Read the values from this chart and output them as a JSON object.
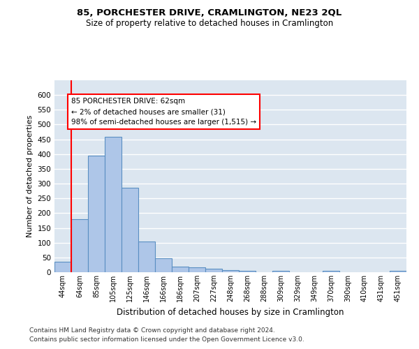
{
  "title": "85, PORCHESTER DRIVE, CRAMLINGTON, NE23 2QL",
  "subtitle": "Size of property relative to detached houses in Cramlington",
  "xlabel": "Distribution of detached houses by size in Cramlington",
  "ylabel": "Number of detached properties",
  "categories": [
    "44sqm",
    "64sqm",
    "85sqm",
    "105sqm",
    "125sqm",
    "146sqm",
    "166sqm",
    "186sqm",
    "207sqm",
    "227sqm",
    "248sqm",
    "268sqm",
    "288sqm",
    "309sqm",
    "329sqm",
    "349sqm",
    "370sqm",
    "390sqm",
    "410sqm",
    "431sqm",
    "451sqm"
  ],
  "values": [
    35,
    180,
    395,
    458,
    287,
    103,
    48,
    20,
    16,
    12,
    8,
    4,
    0,
    4,
    0,
    0,
    4,
    0,
    0,
    0,
    4
  ],
  "bar_color": "#aec6e8",
  "bar_edgecolor": "#5a8fc2",
  "background_color": "#ffffff",
  "plot_bg_color": "#dce6f0",
  "grid_color": "#ffffff",
  "ylim": [
    0,
    650
  ],
  "yticks": [
    0,
    50,
    100,
    150,
    200,
    250,
    300,
    350,
    400,
    450,
    500,
    550,
    600
  ],
  "red_line_x": 0.5,
  "annotation_text": "85 PORCHESTER DRIVE: 62sqm\n← 2% of detached houses are smaller (31)\n98% of semi-detached houses are larger (1,515) →",
  "footnote1": "Contains HM Land Registry data © Crown copyright and database right 2024.",
  "footnote2": "Contains public sector information licensed under the Open Government Licence v3.0."
}
